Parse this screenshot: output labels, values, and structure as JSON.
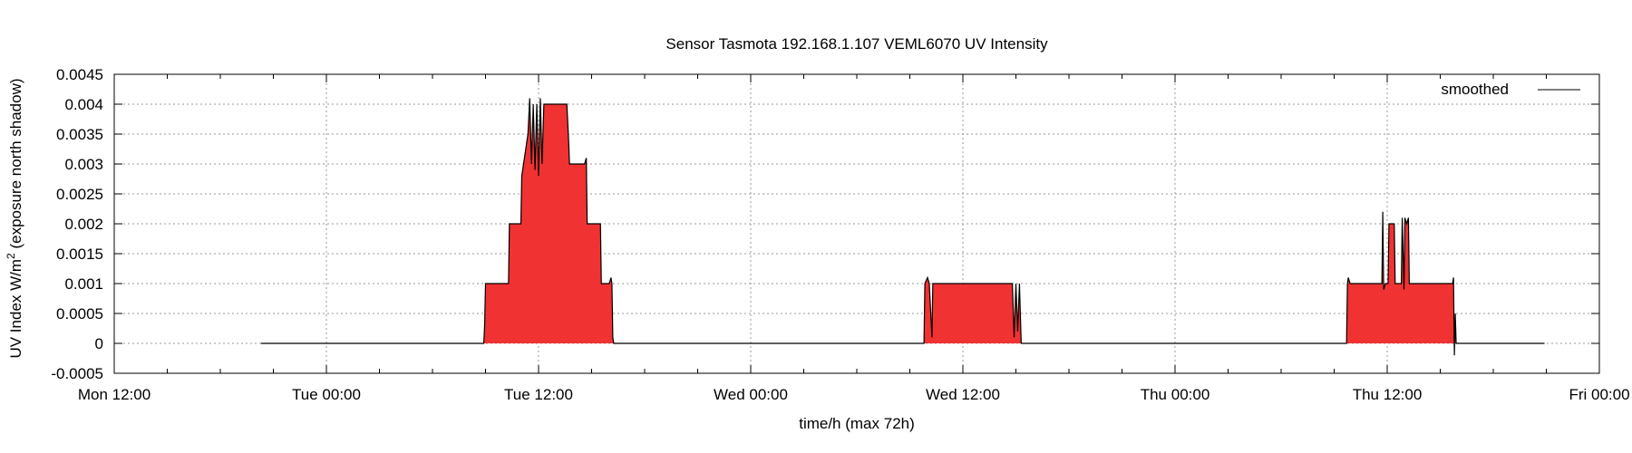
{
  "chart_data": {
    "type": "area",
    "title": "Sensor Tasmota 192.168.1.107 VEML6070 UV Intensity",
    "xlabel": "time/h (max 72h)",
    "ylabel_main": "UV Index W/m",
    "ylabel_sup": "2",
    "ylabel_tail": " (exposure north shadow)",
    "xlim": [
      0,
      84
    ],
    "ylim": [
      -0.0005,
      0.0045
    ],
    "x_unit": "hours since Mon 12:00",
    "y_ticks": [
      {
        "v": -0.0005,
        "label": "-0.0005"
      },
      {
        "v": 0,
        "label": "0"
      },
      {
        "v": 0.0005,
        "label": "0.0005"
      },
      {
        "v": 0.001,
        "label": "0.001"
      },
      {
        "v": 0.0015,
        "label": "0.0015"
      },
      {
        "v": 0.002,
        "label": "0.002"
      },
      {
        "v": 0.0025,
        "label": "0.0025"
      },
      {
        "v": 0.003,
        "label": "0.003"
      },
      {
        "v": 0.0035,
        "label": "0.0035"
      },
      {
        "v": 0.004,
        "label": "0.004"
      },
      {
        "v": 0.0045,
        "label": "0.0045"
      }
    ],
    "x_ticks": [
      {
        "v": 0,
        "label": "Mon 12:00"
      },
      {
        "v": 12,
        "label": "Tue 00:00"
      },
      {
        "v": 24,
        "label": "Tue 12:00"
      },
      {
        "v": 36,
        "label": "Wed 00:00"
      },
      {
        "v": 48,
        "label": "Wed 12:00"
      },
      {
        "v": 60,
        "label": "Thu 00:00"
      },
      {
        "v": 72,
        "label": "Thu 12:00"
      },
      {
        "v": 84,
        "label": "Fri 00:00"
      }
    ],
    "grid": true,
    "legend": {
      "position": "top-right",
      "label": "smoothed"
    },
    "colors": {
      "fill": "#f03232",
      "line": "#000000",
      "grid": "#9a9a9a"
    },
    "series": [
      {
        "name": "smoothed",
        "points": [
          [
            8.3,
            0
          ],
          [
            20.9,
            0
          ],
          [
            20.95,
            0.0003
          ],
          [
            21.0,
            0.001
          ],
          [
            22.3,
            0.001
          ],
          [
            22.35,
            0.002
          ],
          [
            23.0,
            0.002
          ],
          [
            23.05,
            0.0028
          ],
          [
            23.4,
            0.0035
          ],
          [
            23.5,
            0.0041
          ],
          [
            23.6,
            0.003
          ],
          [
            23.7,
            0.004
          ],
          [
            23.8,
            0.0029
          ],
          [
            23.9,
            0.004
          ],
          [
            24.0,
            0.0028
          ],
          [
            24.1,
            0.0041
          ],
          [
            24.2,
            0.003
          ],
          [
            24.3,
            0.004
          ],
          [
            25.6,
            0.004
          ],
          [
            25.7,
            0.0034
          ],
          [
            25.75,
            0.003
          ],
          [
            26.6,
            0.003
          ],
          [
            26.7,
            0.0031
          ],
          [
            26.75,
            0.002
          ],
          [
            27.5,
            0.002
          ],
          [
            27.55,
            0.001
          ],
          [
            28.0,
            0.001
          ],
          [
            28.1,
            0.0011
          ],
          [
            28.15,
            0.001
          ],
          [
            28.2,
            0.0001
          ],
          [
            28.25,
            0
          ],
          [
            45.8,
            0
          ],
          [
            45.85,
            0.001
          ],
          [
            46.0,
            0.0011
          ],
          [
            46.1,
            0.001
          ],
          [
            46.25,
            0.0001
          ],
          [
            46.3,
            0.001
          ],
          [
            50.8,
            0.001
          ],
          [
            50.9,
            0.0001
          ],
          [
            51.0,
            0.001
          ],
          [
            51.1,
            0.0002
          ],
          [
            51.2,
            0.001
          ],
          [
            51.3,
            0
          ],
          [
            69.7,
            0
          ],
          [
            69.75,
            0.001
          ],
          [
            69.8,
            0.0011
          ],
          [
            69.9,
            0.001
          ],
          [
            71.7,
            0.001
          ],
          [
            71.75,
            0.0022
          ],
          [
            71.8,
            0.0009
          ],
          [
            71.9,
            0.001
          ],
          [
            72.05,
            0.001
          ],
          [
            72.1,
            0.002
          ],
          [
            72.4,
            0.002
          ],
          [
            72.45,
            0.001
          ],
          [
            72.8,
            0.001
          ],
          [
            72.85,
            0.0021
          ],
          [
            72.95,
            0.0009
          ],
          [
            73.0,
            0.0021
          ],
          [
            73.1,
            0.002
          ],
          [
            73.2,
            0.0021
          ],
          [
            73.25,
            0.001
          ],
          [
            75.7,
            0.001
          ],
          [
            75.75,
            0.0011
          ],
          [
            75.8,
            -0.0002
          ],
          [
            75.85,
            0.0005
          ],
          [
            75.9,
            0
          ],
          [
            80.9,
            0
          ]
        ]
      }
    ]
  }
}
